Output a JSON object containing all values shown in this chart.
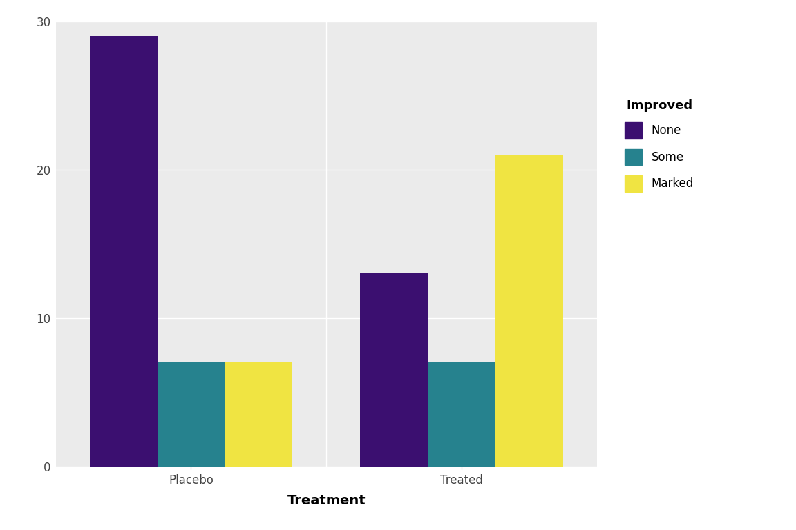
{
  "categories": [
    "Placebo",
    "Treated"
  ],
  "groups": [
    "None",
    "Some",
    "Marked"
  ],
  "values": {
    "Placebo": [
      29,
      7,
      7
    ],
    "Treated": [
      13,
      7,
      21
    ]
  },
  "colors": {
    "None": "#3B0F70",
    "Some": "#26828E",
    "Marked": "#F0E442"
  },
  "legend_title": "Improved",
  "xlabel": "Treatment",
  "ylabel": "",
  "ylim": [
    0,
    30
  ],
  "yticks": [
    0,
    10,
    20,
    30
  ],
  "plot_bg": "#EBEBEB",
  "fig_bg": "#FFFFFF",
  "grid_color": "#FFFFFF",
  "bar_width": 0.25,
  "axis_label_fontsize": 14,
  "tick_fontsize": 12,
  "legend_fontsize": 12,
  "legend_title_fontsize": 13
}
